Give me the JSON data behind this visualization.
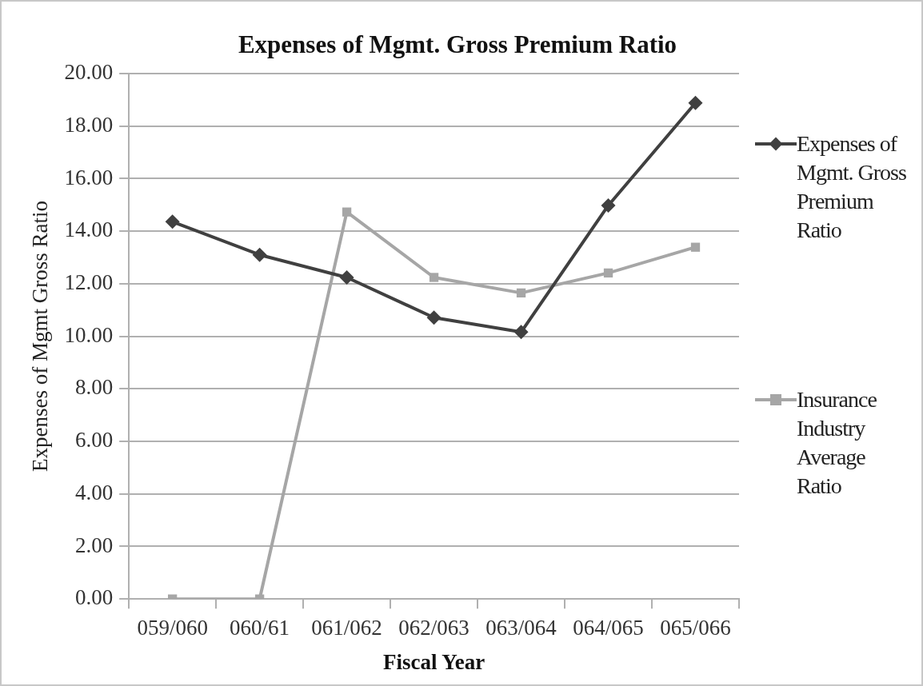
{
  "chart_data": {
    "type": "line",
    "title": "Expenses of Mgmt. Gross Premium Ratio",
    "xlabel": "Fiscal Year",
    "ylabel": "Expenses of Mgmt Gross Ratio",
    "categories": [
      "059/060",
      "060/61",
      "061/062",
      "062/063",
      "063/064",
      "064/065",
      "065/066"
    ],
    "series": [
      {
        "name": "Expenses of Mgmt. Gross Premium Ratio",
        "color": "#404040",
        "marker": "diamond",
        "values": [
          14.36,
          13.1,
          12.24,
          10.71,
          10.16,
          14.98,
          18.88
        ]
      },
      {
        "name": "Insurance Industry Average Ratio",
        "color": "#a6a6a6",
        "marker": "square",
        "values": [
          0,
          0,
          14.73,
          12.24,
          11.65,
          12.41,
          13.39
        ]
      }
    ],
    "ylim": [
      0,
      20
    ],
    "yticks": [
      {
        "value": 0,
        "label": "0.00"
      },
      {
        "value": 2,
        "label": "2.00"
      },
      {
        "value": 4,
        "label": "4.00"
      },
      {
        "value": 6,
        "label": "6.00"
      },
      {
        "value": 8,
        "label": "8.00"
      },
      {
        "value": 10,
        "label": "10.00"
      },
      {
        "value": 12,
        "label": "12.00"
      },
      {
        "value": 14,
        "label": "14.00"
      },
      {
        "value": 16,
        "label": "16.00"
      },
      {
        "value": 18,
        "label": "18.00"
      },
      {
        "value": 20,
        "label": "20.00"
      }
    ],
    "grid": "y",
    "legend": "right",
    "line_style": "solid"
  }
}
